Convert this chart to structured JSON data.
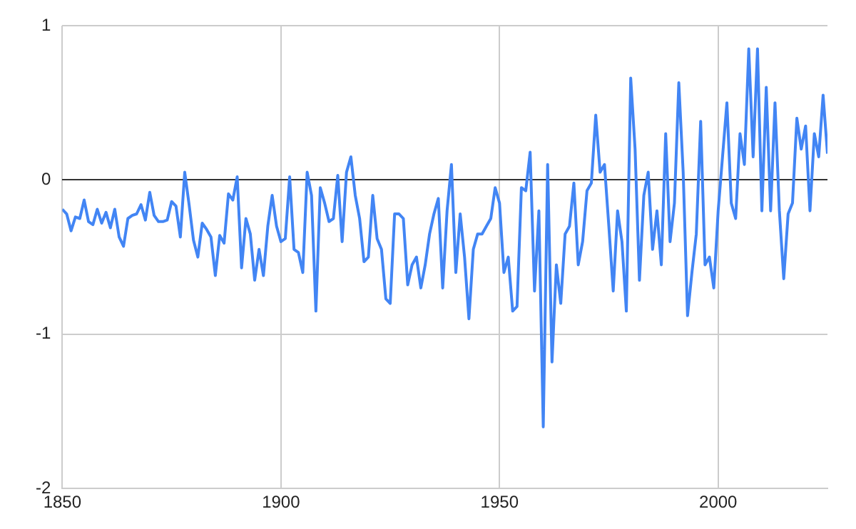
{
  "chart_data": {
    "type": "line",
    "x": [
      1850,
      1851,
      1852,
      1853,
      1854,
      1855,
      1856,
      1857,
      1858,
      1859,
      1860,
      1861,
      1862,
      1863,
      1864,
      1865,
      1866,
      1867,
      1868,
      1869,
      1870,
      1871,
      1872,
      1873,
      1874,
      1875,
      1876,
      1877,
      1878,
      1879,
      1880,
      1881,
      1882,
      1883,
      1884,
      1885,
      1886,
      1887,
      1888,
      1889,
      1890,
      1891,
      1892,
      1893,
      1894,
      1895,
      1896,
      1897,
      1898,
      1899,
      1900,
      1901,
      1902,
      1903,
      1904,
      1905,
      1906,
      1907,
      1908,
      1909,
      1910,
      1911,
      1912,
      1913,
      1914,
      1915,
      1916,
      1917,
      1918,
      1919,
      1920,
      1921,
      1922,
      1923,
      1924,
      1925,
      1926,
      1927,
      1928,
      1929,
      1930,
      1931,
      1932,
      1933,
      1934,
      1935,
      1936,
      1937,
      1938,
      1939,
      1940,
      1941,
      1942,
      1943,
      1944,
      1945,
      1946,
      1947,
      1948,
      1949,
      1950,
      1951,
      1952,
      1953,
      1954,
      1955,
      1956,
      1957,
      1958,
      1959,
      1960,
      1961,
      1962,
      1963,
      1964,
      1965,
      1966,
      1967,
      1968,
      1969,
      1970,
      1971,
      1972,
      1973,
      1974,
      1975,
      1976,
      1977,
      1978,
      1979,
      1980,
      1981,
      1982,
      1983,
      1984,
      1985,
      1986,
      1987,
      1988,
      1989,
      1990,
      1991,
      1992,
      1993,
      1994,
      1995,
      1996,
      1997,
      1998,
      1999,
      2000,
      2001,
      2002,
      2003,
      2004,
      2005,
      2006,
      2007,
      2008,
      2009,
      2010,
      2011,
      2012,
      2013,
      2014,
      2015,
      2016,
      2017,
      2018,
      2019,
      2020,
      2021,
      2022,
      2023,
      2024,
      2025
    ],
    "series": [
      {
        "color": "#4285f4",
        "values": [
          -0.19,
          -0.22,
          -0.33,
          -0.24,
          -0.25,
          -0.13,
          -0.27,
          -0.29,
          -0.19,
          -0.28,
          -0.21,
          -0.31,
          -0.19,
          -0.37,
          -0.43,
          -0.25,
          -0.23,
          -0.22,
          -0.16,
          -0.26,
          -0.08,
          -0.23,
          -0.27,
          -0.27,
          -0.26,
          -0.14,
          -0.17,
          -0.37,
          0.05,
          -0.16,
          -0.39,
          -0.5,
          -0.28,
          -0.32,
          -0.37,
          -0.62,
          -0.36,
          -0.41,
          -0.09,
          -0.13,
          0.02,
          -0.57,
          -0.25,
          -0.35,
          -0.65,
          -0.45,
          -0.62,
          -0.3,
          -0.1,
          -0.3,
          -0.4,
          -0.38,
          0.02,
          -0.45,
          -0.47,
          -0.6,
          0.05,
          -0.1,
          -0.85,
          -0.05,
          -0.15,
          -0.27,
          -0.25,
          0.03,
          -0.4,
          0.05,
          0.15,
          -0.1,
          -0.25,
          -0.53,
          -0.5,
          -0.1,
          -0.38,
          -0.45,
          -0.77,
          -0.8,
          -0.22,
          -0.22,
          -0.25,
          -0.68,
          -0.55,
          -0.5,
          -0.7,
          -0.55,
          -0.35,
          -0.22,
          -0.12,
          -0.7,
          -0.2,
          0.1,
          -0.6,
          -0.22,
          -0.5,
          -0.9,
          -0.45,
          -0.35,
          -0.35,
          -0.3,
          -0.25,
          -0.05,
          -0.15,
          -0.6,
          -0.5,
          -0.85,
          -0.82,
          -0.05,
          -0.07,
          0.18,
          -0.72,
          -0.2,
          -1.6,
          0.1,
          -1.18,
          -0.55,
          -0.8,
          -0.35,
          -0.3,
          -0.02,
          -0.55,
          -0.4,
          -0.07,
          -0.02,
          0.42,
          0.05,
          0.1,
          -0.3,
          -0.72,
          -0.2,
          -0.4,
          -0.85,
          0.66,
          0.2,
          -0.65,
          -0.1,
          0.05,
          -0.45,
          -0.2,
          -0.55,
          0.3,
          -0.4,
          -0.15,
          0.63,
          0.05,
          -0.88,
          -0.6,
          -0.35,
          0.38,
          -0.55,
          -0.5,
          -0.7,
          -0.2,
          0.15,
          0.5,
          -0.15,
          -0.25,
          0.3,
          0.1,
          0.85,
          0.15,
          0.85,
          -0.2,
          0.6,
          -0.2,
          0.5,
          -0.2,
          -0.64,
          -0.22,
          -0.15,
          0.4,
          0.2,
          0.35,
          -0.2,
          0.3,
          0.15,
          0.55,
          0.17
        ]
      }
    ],
    "xlim": [
      1850,
      2025
    ],
    "xticks": [
      1850,
      1900,
      1950,
      2000
    ],
    "ylim": [
      -2,
      1
    ],
    "yticks": [
      -2,
      -1,
      0,
      1
    ],
    "grid": true,
    "legend": false,
    "marker": "none",
    "line_style": "solid"
  }
}
